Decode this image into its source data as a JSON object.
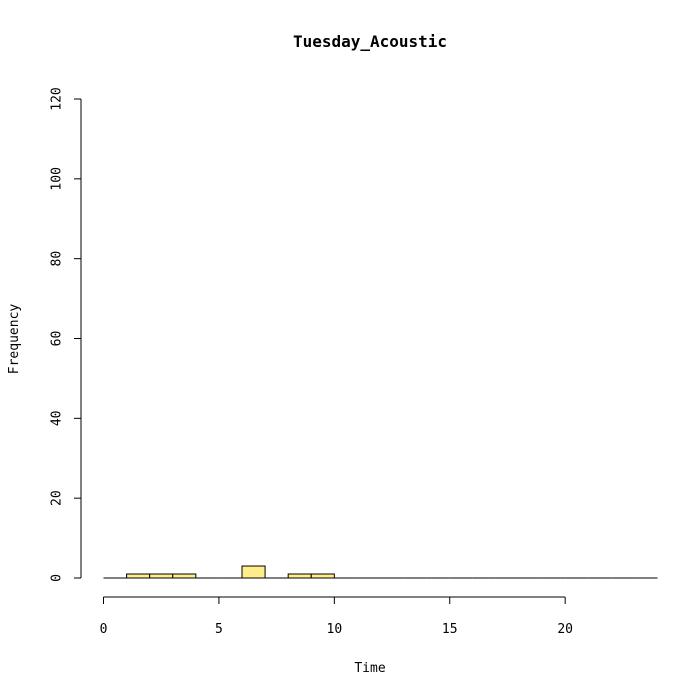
{
  "chart_data": {
    "type": "bar",
    "title": "Tuesday_Acoustic",
    "xlabel": "Time",
    "ylabel": "Frequency",
    "bar_color": "#FFEC8B",
    "xlim": [
      0,
      24
    ],
    "ylim": [
      0,
      120
    ],
    "x_ticks": [
      0,
      5,
      10,
      15,
      20
    ],
    "y_ticks": [
      0,
      20,
      40,
      60,
      80,
      100,
      120
    ],
    "bins": [
      {
        "start": 0,
        "end": 1,
        "count": 0
      },
      {
        "start": 1,
        "end": 2,
        "count": 1
      },
      {
        "start": 2,
        "end": 3,
        "count": 1
      },
      {
        "start": 3,
        "end": 4,
        "count": 1
      },
      {
        "start": 4,
        "end": 5,
        "count": 0
      },
      {
        "start": 5,
        "end": 6,
        "count": 0
      },
      {
        "start": 6,
        "end": 7,
        "count": 3
      },
      {
        "start": 7,
        "end": 8,
        "count": 0
      },
      {
        "start": 8,
        "end": 9,
        "count": 1
      },
      {
        "start": 9,
        "end": 10,
        "count": 1
      },
      {
        "start": 10,
        "end": 11,
        "count": 0
      },
      {
        "start": 11,
        "end": 12,
        "count": 0
      },
      {
        "start": 12,
        "end": 13,
        "count": 0
      },
      {
        "start": 13,
        "end": 14,
        "count": 0
      },
      {
        "start": 14,
        "end": 15,
        "count": 0
      },
      {
        "start": 15,
        "end": 16,
        "count": 0
      },
      {
        "start": 16,
        "end": 17,
        "count": 0
      },
      {
        "start": 17,
        "end": 18,
        "count": 0
      },
      {
        "start": 18,
        "end": 19,
        "count": 0
      },
      {
        "start": 19,
        "end": 20,
        "count": 0
      },
      {
        "start": 20,
        "end": 21,
        "count": 0
      },
      {
        "start": 21,
        "end": 22,
        "count": 0
      },
      {
        "start": 22,
        "end": 23,
        "count": 0
      },
      {
        "start": 23,
        "end": 24,
        "count": 0
      }
    ]
  }
}
